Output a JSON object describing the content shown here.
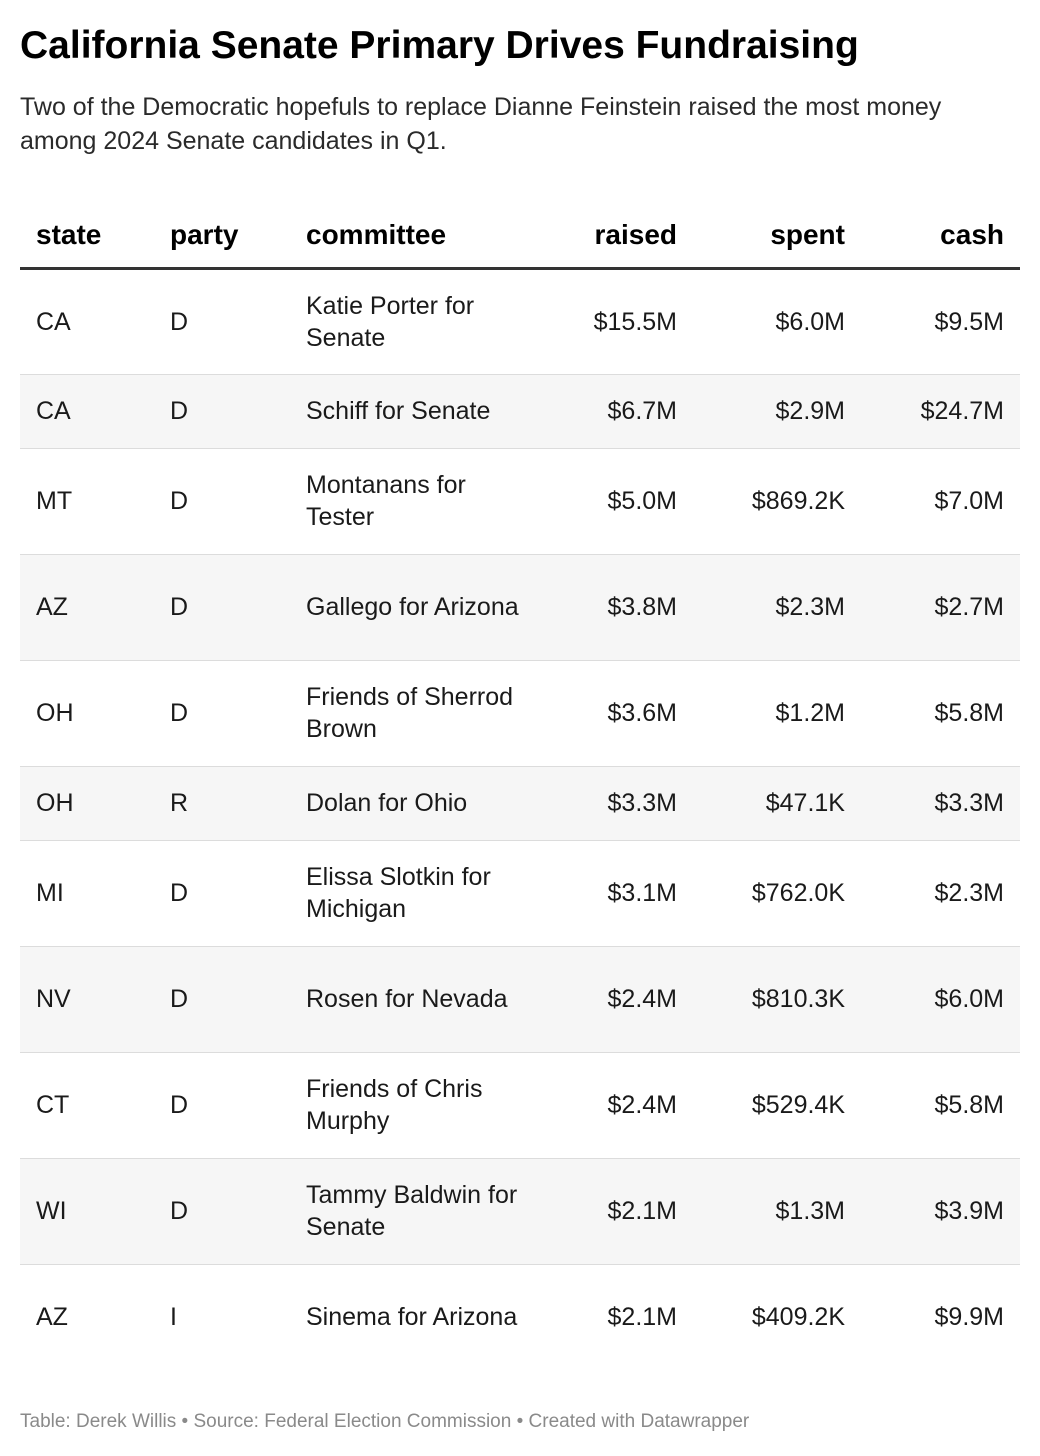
{
  "title": "California Senate Primary Drives Fundraising",
  "subtitle": "Two of the Democratic hopefuls to replace Dianne Feinstein raised the most money among 2024 Senate candidates in Q1.",
  "footer": "Table: Derek Willis • Source: Federal Election Commission • Created with Datawrapper",
  "chart_data": {
    "type": "table",
    "columns": [
      "state",
      "party",
      "committee",
      "raised",
      "spent",
      "cash"
    ],
    "rows": [
      [
        "CA",
        "D",
        "Katie Porter for Senate",
        "$15.5M",
        "$6.0M",
        "$9.5M"
      ],
      [
        "CA",
        "D",
        "Schiff for Senate",
        "$6.7M",
        "$2.9M",
        "$24.7M"
      ],
      [
        "MT",
        "D",
        "Montanans for Tester",
        "$5.0M",
        "$869.2K",
        "$7.0M"
      ],
      [
        "AZ",
        "D",
        "Gallego for Arizona",
        "$3.8M",
        "$2.3M",
        "$2.7M"
      ],
      [
        "OH",
        "D",
        "Friends of Sherrod Brown",
        "$3.6M",
        "$1.2M",
        "$5.8M"
      ],
      [
        "OH",
        "R",
        "Dolan for Ohio",
        "$3.3M",
        "$47.1K",
        "$3.3M"
      ],
      [
        "MI",
        "D",
        "Elissa Slotkin for Michigan",
        "$3.1M",
        "$762.0K",
        "$2.3M"
      ],
      [
        "NV",
        "D",
        "Rosen for Nevada",
        "$2.4M",
        "$810.3K",
        "$6.0M"
      ],
      [
        "CT",
        "D",
        "Friends of Chris Murphy",
        "$2.4M",
        "$529.4K",
        "$5.8M"
      ],
      [
        "WI",
        "D",
        "Tammy Baldwin for Senate",
        "$2.1M",
        "$1.3M",
        "$3.9M"
      ],
      [
        "AZ",
        "I",
        "Sinema for Arizona",
        "$2.1M",
        "$409.2K",
        "$9.9M"
      ]
    ]
  }
}
